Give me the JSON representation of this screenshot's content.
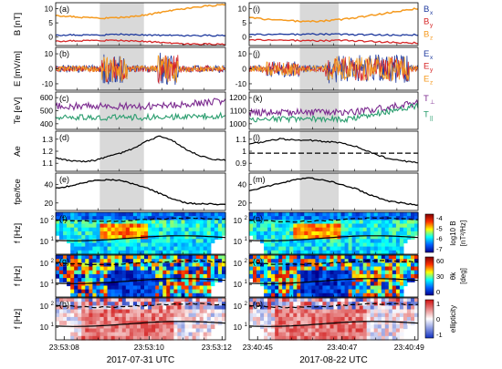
{
  "chart_data": {
    "type": "line",
    "columns": [
      {
        "date_label": "2017-07-31 UTC",
        "ticks": [
          "23:53:08",
          "23:53:10",
          "23:53:12"
        ]
      },
      {
        "date_label": "2017-08-22 UTC",
        "ticks": [
          "23:40:45",
          "23:40:47",
          "23:40:49"
        ]
      }
    ],
    "panels": [
      {
        "ylabel": "B [nT]",
        "letters": [
          "(a)",
          "(i)"
        ],
        "ticks": [
          [
            "0",
            "5",
            "10"
          ],
          [
            "0",
            "5",
            "10"
          ]
        ],
        "legend": [
          {
            "name": "B",
            "sub": "x",
            "color": "#1f3a9e"
          },
          {
            "name": "B",
            "sub": "y",
            "color": "#d62728"
          },
          {
            "name": "B",
            "sub": "z",
            "color": "#f59a1f"
          }
        ],
        "series": [
          [
            {
              "name": "Bx",
              "values": [
                0.6,
                0.7,
                0.7,
                0.7,
                0.8,
                0.9,
                0.8,
                0.7,
                0.6,
                0.6,
                0.5,
                0.5,
                0.5,
                0.6
              ]
            },
            {
              "name": "By",
              "values": [
                -1.5,
                -1.4,
                -1.3,
                -1.2,
                -1.2,
                -1.3,
                -1.4,
                -1.6,
                -1.9,
                -2.2,
                -2.4,
                -2.5,
                -2.5,
                -2.5
              ]
            },
            {
              "name": "Bz",
              "values": [
                7.5,
                7.2,
                6.9,
                6.7,
                6.6,
                6.8,
                7.2,
                7.8,
                8.6,
                9.4,
                10.0,
                10.6,
                11.0,
                11.5
              ]
            }
          ],
          [
            {
              "name": "Bx",
              "values": [
                0.8,
                0.8,
                0.9,
                0.9,
                1.0,
                1.0,
                0.9,
                0.8,
                0.8,
                0.7,
                0.7,
                0.8
              ]
            },
            {
              "name": "By",
              "values": [
                -1.1,
                -1.1,
                -1.2,
                -1.2,
                -1.3,
                -1.3,
                -1.2,
                -1.4,
                -1.6,
                -1.8,
                -2.0,
                -2.1
              ]
            },
            {
              "name": "Bz",
              "values": [
                6.8,
                6.2,
                5.9,
                5.6,
                5.4,
                5.7,
                6.1,
                6.8,
                7.6,
                8.4,
                9.3,
                10.0
              ]
            }
          ]
        ]
      },
      {
        "ylabel": "E [mV/m]",
        "letters": [
          "(b)",
          "(j)"
        ],
        "ticks": [
          [
            "-10",
            "0",
            "10"
          ],
          [
            "-10",
            "0",
            "10"
          ]
        ],
        "legend": [
          {
            "name": "E",
            "sub": "x",
            "color": "#1f3a9e"
          },
          {
            "name": "E",
            "sub": "y",
            "color": "#d62728"
          },
          {
            "name": "E",
            "sub": "z",
            "color": "#f59a1f"
          }
        ]
      },
      {
        "ylabel": "Te [eV]",
        "letters": [
          "(c)",
          "(k)"
        ],
        "ticks": [
          [
            "400",
            "500",
            "600"
          ],
          [
            "1000",
            "1100",
            "1200"
          ]
        ],
        "legend": [
          {
            "name": "T",
            "sub": "⊥",
            "color": "#7b2a8f"
          },
          {
            "name": "T",
            "sub": "||",
            "color": "#2a9d6e"
          }
        ]
      },
      {
        "ylabel": "Ae",
        "letters": [
          "(d)",
          "(l)"
        ],
        "ticks": [
          [
            "1.1",
            "1.2",
            "1.3"
          ],
          [
            "0.9",
            "1",
            "1.1"
          ]
        ],
        "series": [
          [
            {
              "name": "Ae",
              "values": [
                1.16,
                1.14,
                1.13,
                1.14,
                1.17,
                1.2,
                1.24,
                1.3,
                1.34,
                1.3,
                1.23,
                1.18,
                1.15,
                1.14
              ]
            }
          ],
          [
            {
              "name": "Ae",
              "values": [
                1.07,
                1.09,
                1.11,
                1.1,
                1.1,
                1.09,
                1.08,
                1.05,
                1.0,
                0.96,
                0.94,
                0.93
              ]
            }
          ]
        ],
        "reference": [
          null,
          1.0
        ]
      },
      {
        "ylabel": "fpe/fce",
        "letters": [
          "(e)",
          "(m)"
        ],
        "ticks": [
          [
            "20",
            "40"
          ],
          [
            "20",
            "40"
          ]
        ],
        "series": [
          [
            {
              "name": "fpe/fce",
              "values": [
                36,
                38,
                41,
                44,
                45,
                44,
                40,
                36,
                30,
                24,
                20,
                19,
                19,
                18
              ]
            }
          ],
          [
            {
              "name": "fpe/fce",
              "values": [
                33,
                37,
                41,
                45,
                47,
                44,
                40,
                35,
                28,
                22,
                20,
                18
              ]
            }
          ]
        ]
      },
      {
        "ylabel": "f [Hz]",
        "letters": [
          "(f)",
          "(n)"
        ],
        "ticks": [
          [
            "10^1",
            "10^2"
          ],
          [
            "10^1",
            "10^2"
          ]
        ],
        "colorbar": {
          "label": "log10 B",
          "unit": "[nT²/Hz]",
          "ticks": [
            "-4",
            "-5",
            "-6",
            "-7"
          ]
        }
      },
      {
        "ylabel": "f [Hz]",
        "letters": [
          "(g)",
          "(o)"
        ],
        "ticks": [
          [
            "10^1",
            "10^2"
          ],
          [
            "10^1",
            "10^2"
          ]
        ],
        "colorbar": {
          "label": "θk",
          "unit": "[deg]",
          "ticks": [
            "60",
            "30",
            "0"
          ]
        }
      },
      {
        "ylabel": "f [Hz]",
        "letters": [
          "(h)",
          "(p)"
        ],
        "ticks": [
          [
            "10^1",
            "10^2"
          ],
          [
            "10^1",
            "10^2"
          ]
        ],
        "colorbar": {
          "label": "ellipticity",
          "unit": "",
          "ticks": [
            "1",
            "0",
            "-1"
          ]
        }
      }
    ],
    "shaded_intervals": [
      [
        0.26,
        0.52
      ],
      [
        0.3,
        0.53
      ]
    ],
    "colors": {
      "orange": "#f59a1f",
      "blue": "#1f3a9e",
      "red": "#d62728",
      "purple": "#7b2a8f",
      "green": "#2a9d6e",
      "shade": "#d9d9d9"
    }
  }
}
